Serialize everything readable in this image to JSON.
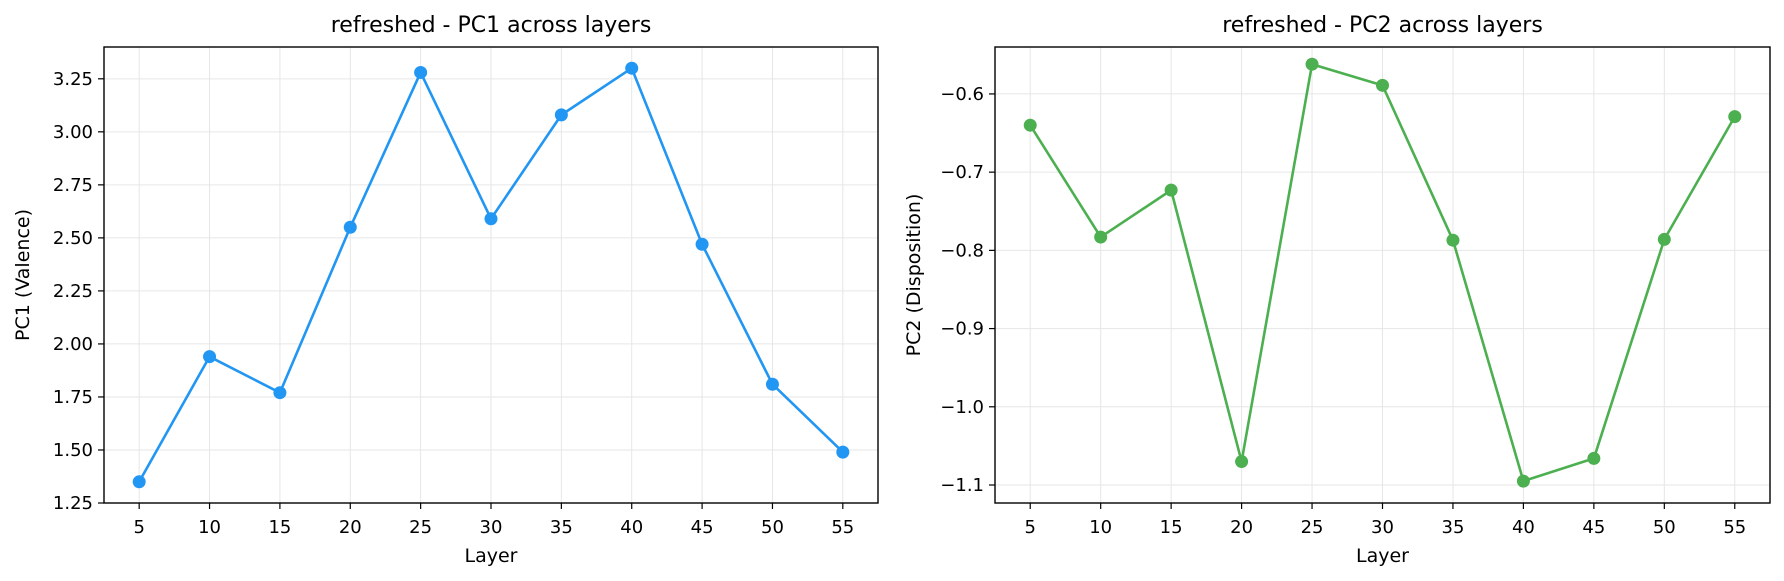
{
  "chart_data": [
    {
      "type": "line",
      "title": "refreshed - PC1 across layers",
      "xlabel": "Layer",
      "ylabel": "PC1 (Valence)",
      "x": [
        5,
        10,
        15,
        20,
        25,
        30,
        35,
        40,
        45,
        50,
        55
      ],
      "x_ticks": [
        "5",
        "10",
        "15",
        "20",
        "25",
        "30",
        "35",
        "40",
        "45",
        "50",
        "55"
      ],
      "xlim": [
        2.5,
        57.5
      ],
      "ylim": [
        1.25,
        3.4
      ],
      "y_ticks": [
        "1.25",
        "1.50",
        "1.75",
        "2.00",
        "2.25",
        "2.50",
        "2.75",
        "3.00",
        "3.25"
      ],
      "grid": true,
      "series": [
        {
          "color": "#2196F3",
          "values": [
            1.35,
            1.94,
            1.77,
            2.55,
            3.28,
            2.59,
            3.08,
            3.3,
            2.47,
            1.81,
            1.49
          ]
        }
      ]
    },
    {
      "type": "line",
      "title": "refreshed - PC2 across layers",
      "xlabel": "Layer",
      "ylabel": "PC2 (Disposition)",
      "x": [
        5,
        10,
        15,
        20,
        25,
        30,
        35,
        40,
        45,
        50,
        55
      ],
      "x_ticks": [
        "5",
        "10",
        "15",
        "20",
        "25",
        "30",
        "35",
        "40",
        "45",
        "50",
        "55"
      ],
      "xlim": [
        2.5,
        57.5
      ],
      "ylim": [
        -1.123,
        -0.54
      ],
      "y_ticks": [
        "−0.6",
        "−0.7",
        "−0.8",
        "−0.9",
        "−1.0",
        "−1.1"
      ],
      "y_tick_values": [
        -0.6,
        -0.7,
        -0.8,
        -0.9,
        -1.0,
        -1.1
      ],
      "grid": true,
      "series": [
        {
          "color": "#4CAF50",
          "values": [
            -0.64,
            -0.783,
            -0.723,
            -1.07,
            -0.562,
            -0.589,
            -0.787,
            -1.095,
            -1.066,
            -0.786,
            -0.629
          ]
        }
      ]
    }
  ]
}
